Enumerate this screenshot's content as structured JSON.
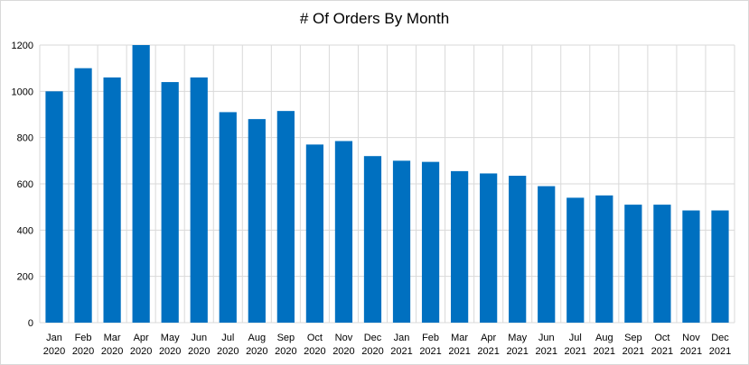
{
  "chart_data": {
    "type": "bar",
    "title": "# Of Orders By Month",
    "xlabel": "",
    "ylabel": "",
    "ylim": [
      0,
      1200
    ],
    "yticks": [
      0,
      200,
      400,
      600,
      800,
      1000,
      1200
    ],
    "grid": true,
    "categories": [
      [
        "Jan",
        "2020"
      ],
      [
        "Feb",
        "2020"
      ],
      [
        "Mar",
        "2020"
      ],
      [
        "Apr",
        "2020"
      ],
      [
        "May",
        "2020"
      ],
      [
        "Jun",
        "2020"
      ],
      [
        "Jul",
        "2020"
      ],
      [
        "Aug",
        "2020"
      ],
      [
        "Sep",
        "2020"
      ],
      [
        "Oct",
        "2020"
      ],
      [
        "Nov",
        "2020"
      ],
      [
        "Dec",
        "2020"
      ],
      [
        "Jan",
        "2021"
      ],
      [
        "Feb",
        "2021"
      ],
      [
        "Mar",
        "2021"
      ],
      [
        "Apr",
        "2021"
      ],
      [
        "May",
        "2021"
      ],
      [
        "Jun",
        "2021"
      ],
      [
        "Jul",
        "2021"
      ],
      [
        "Aug",
        "2021"
      ],
      [
        "Sep",
        "2021"
      ],
      [
        "Oct",
        "2021"
      ],
      [
        "Nov",
        "2021"
      ],
      [
        "Dec",
        "2021"
      ]
    ],
    "values": [
      1000,
      1100,
      1060,
      1200,
      1040,
      1060,
      910,
      880,
      915,
      770,
      785,
      720,
      700,
      695,
      655,
      645,
      635,
      590,
      540,
      550,
      510,
      510,
      485,
      485
    ],
    "bar_color": "#0070c0",
    "grid_color": "#d9d9d9"
  }
}
